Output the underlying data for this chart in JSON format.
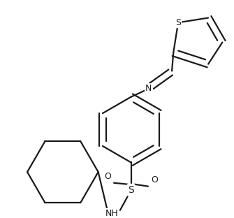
{
  "background_color": "#ffffff",
  "line_color": "#1a1a1a",
  "line_width": 1.6,
  "fig_width": 3.35,
  "fig_height": 3.12,
  "dpi": 100,
  "label_S_sulfonamide": "S",
  "label_O1": "O",
  "label_O2": "O",
  "label_NH": "NH",
  "label_N": "N",
  "label_S_thiophene": "S",
  "font_size": 9
}
